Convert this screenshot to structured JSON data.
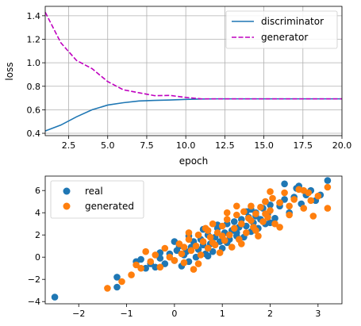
{
  "chart_data": [
    {
      "type": "line",
      "xlabel": "epoch",
      "ylabel": "loss",
      "xlim": [
        1,
        20
      ],
      "ylim": [
        0.38,
        1.48
      ],
      "xticks": [
        2.5,
        5.0,
        7.5,
        10.0,
        12.5,
        15.0,
        17.5,
        20.0
      ],
      "xtick_labels": [
        "2.5",
        "5.0",
        "7.5",
        "10.0",
        "12.5",
        "15.0",
        "17.5",
        "20.0"
      ],
      "yticks": [
        0.4,
        0.6,
        0.8,
        1.0,
        1.2,
        1.4
      ],
      "ytick_labels": [
        "0.4",
        "0.6",
        "0.8",
        "1.0",
        "1.2",
        "1.4"
      ],
      "grid": true,
      "legend_position": "top-right",
      "x": [
        1,
        2,
        3,
        4,
        5,
        6,
        7,
        8,
        9,
        10,
        11,
        12,
        13,
        14,
        15,
        16,
        17,
        18,
        19,
        20
      ],
      "series": [
        {
          "name": "discriminator",
          "color": "#1f77b4",
          "style": "solid",
          "values": [
            0.42,
            0.47,
            0.54,
            0.6,
            0.64,
            0.66,
            0.675,
            0.68,
            0.683,
            0.688,
            0.692,
            0.693,
            0.693,
            0.693,
            0.693,
            0.693,
            0.693,
            0.693,
            0.693,
            0.693
          ]
        },
        {
          "name": "generator",
          "color": "#bf00bf",
          "style": "dashed",
          "values": [
            1.43,
            1.17,
            1.02,
            0.95,
            0.84,
            0.77,
            0.745,
            0.72,
            0.722,
            0.705,
            0.693,
            0.693,
            0.693,
            0.693,
            0.693,
            0.693,
            0.693,
            0.693,
            0.693,
            0.693
          ]
        }
      ]
    },
    {
      "type": "scatter",
      "xlim": [
        -2.7,
        3.5
      ],
      "ylim": [
        -4.2,
        7.3
      ],
      "xticks": [
        -2,
        -1,
        0,
        1,
        2,
        3
      ],
      "xtick_labels": [
        "−2",
        "−1",
        "0",
        "1",
        "2",
        "3"
      ],
      "yticks": [
        -4,
        -2,
        0,
        2,
        4,
        6
      ],
      "ytick_labels": [
        "−4",
        "−2",
        "0",
        "2",
        "4",
        "6"
      ],
      "grid": false,
      "legend_position": "top-left",
      "series": [
        {
          "name": "real",
          "color": "#1f77b4",
          "points": [
            [
              -2.5,
              -3.6
            ],
            [
              -1.2,
              -2.7
            ],
            [
              -1.2,
              -1.8
            ],
            [
              -0.7,
              -0.2
            ],
            [
              -0.6,
              -1.0
            ],
            [
              -0.5,
              -0.6
            ],
            [
              -0.4,
              -0.9
            ],
            [
              -0.3,
              -0.1
            ],
            [
              -0.2,
              -0.6
            ],
            [
              -0.1,
              0.3
            ],
            [
              0.0,
              -0.3
            ],
            [
              0.05,
              0.6
            ],
            [
              0.1,
              1.0
            ],
            [
              0.15,
              -0.8
            ],
            [
              0.2,
              0.2
            ],
            [
              0.25,
              0.5
            ],
            [
              0.3,
              -0.4
            ],
            [
              0.35,
              0.9
            ],
            [
              0.4,
              1.4
            ],
            [
              0.45,
              0.0
            ],
            [
              0.5,
              0.7
            ],
            [
              0.55,
              1.6
            ],
            [
              0.6,
              1.1
            ],
            [
              0.65,
              0.3
            ],
            [
              0.7,
              2.0
            ],
            [
              0.75,
              1.2
            ],
            [
              0.8,
              0.5
            ],
            [
              0.85,
              1.8
            ],
            [
              0.9,
              2.6
            ],
            [
              0.95,
              1.4
            ],
            [
              1.0,
              0.8
            ],
            [
              1.05,
              2.2
            ],
            [
              1.1,
              3.0
            ],
            [
              1.15,
              1.6
            ],
            [
              1.2,
              2.4
            ],
            [
              1.25,
              3.2
            ],
            [
              1.3,
              1.9
            ],
            [
              1.35,
              2.7
            ],
            [
              1.4,
              3.4
            ],
            [
              1.45,
              1.8
            ],
            [
              1.5,
              2.8
            ],
            [
              1.55,
              3.6
            ],
            [
              1.6,
              2.3
            ],
            [
              1.65,
              3.1
            ],
            [
              1.7,
              4.0
            ],
            [
              1.75,
              2.6
            ],
            [
              1.8,
              3.4
            ],
            [
              1.85,
              4.4
            ],
            [
              1.9,
              3.0
            ],
            [
              1.95,
              3.9
            ],
            [
              2.0,
              4.7
            ],
            [
              2.1,
              3.5
            ],
            [
              2.2,
              4.6
            ],
            [
              2.3,
              5.2
            ],
            [
              2.4,
              4.0
            ],
            [
              2.5,
              5.4
            ],
            [
              2.55,
              6.2
            ],
            [
              2.65,
              4.8
            ],
            [
              2.75,
              5.6
            ],
            [
              2.85,
              6.0
            ],
            [
              2.95,
              5.1
            ],
            [
              3.05,
              5.6
            ],
            [
              3.2,
              6.9
            ],
            [
              0.9,
              2.9
            ],
            [
              1.3,
              2.2
            ],
            [
              0.6,
              2.5
            ],
            [
              1.6,
              4.3
            ],
            [
              2.0,
              3.1
            ],
            [
              2.3,
              6.6
            ],
            [
              -0.8,
              -0.4
            ],
            [
              0.3,
              1.9
            ],
            [
              1.1,
              1.3
            ],
            [
              1.7,
              3.7
            ],
            [
              2.6,
              6.4
            ],
            [
              0.0,
              1.4
            ],
            [
              1.5,
              4.1
            ],
            [
              2.2,
              4.9
            ],
            [
              0.7,
              0.1
            ],
            [
              1.9,
              5.0
            ],
            [
              -0.3,
              0.4
            ]
          ]
        },
        {
          "name": "generated",
          "color": "#ff7f0e",
          "points": [
            [
              -1.4,
              -2.8
            ],
            [
              -1.1,
              -2.2
            ],
            [
              -0.9,
              -1.6
            ],
            [
              -0.8,
              -0.7
            ],
            [
              -0.6,
              0.5
            ],
            [
              -0.5,
              -0.4
            ],
            [
              -0.4,
              0.2
            ],
            [
              -0.3,
              -0.9
            ],
            [
              -0.2,
              0.8
            ],
            [
              -0.1,
              0.0
            ],
            [
              0.0,
              -0.3
            ],
            [
              0.1,
              1.2
            ],
            [
              0.15,
              0.3
            ],
            [
              0.2,
              -0.5
            ],
            [
              0.3,
              1.6
            ],
            [
              0.35,
              0.6
            ],
            [
              0.4,
              -1.1
            ],
            [
              0.45,
              1.0
            ],
            [
              0.5,
              2.0
            ],
            [
              0.55,
              0.2
            ],
            [
              0.6,
              1.4
            ],
            [
              0.65,
              2.6
            ],
            [
              0.7,
              0.8
            ],
            [
              0.75,
              1.8
            ],
            [
              0.8,
              3.0
            ],
            [
              0.85,
              1.1
            ],
            [
              0.9,
              2.2
            ],
            [
              0.95,
              0.4
            ],
            [
              1.0,
              2.8
            ],
            [
              1.05,
              1.5
            ],
            [
              1.1,
              3.4
            ],
            [
              1.15,
              2.0
            ],
            [
              1.2,
              0.9
            ],
            [
              1.25,
              2.6
            ],
            [
              1.3,
              3.8
            ],
            [
              1.35,
              1.6
            ],
            [
              1.4,
              3.0
            ],
            [
              1.45,
              4.1
            ],
            [
              1.5,
              2.2
            ],
            [
              1.55,
              3.5
            ],
            [
              1.6,
              4.6
            ],
            [
              1.65,
              2.7
            ],
            [
              1.7,
              3.9
            ],
            [
              1.75,
              1.9
            ],
            [
              1.8,
              4.5
            ],
            [
              1.85,
              3.2
            ],
            [
              1.9,
              5.0
            ],
            [
              1.95,
              3.6
            ],
            [
              2.0,
              4.2
            ],
            [
              2.05,
              5.3
            ],
            [
              2.1,
              3.0
            ],
            [
              2.2,
              4.9
            ],
            [
              2.3,
              5.8
            ],
            [
              2.4,
              3.8
            ],
            [
              2.5,
              5.2
            ],
            [
              2.6,
              6.1
            ],
            [
              2.7,
              4.4
            ],
            [
              2.8,
              5.8
            ],
            [
              2.9,
              3.7
            ],
            [
              3.0,
              5.5
            ],
            [
              3.2,
              6.3
            ],
            [
              3.2,
              4.4
            ],
            [
              0.3,
              2.2
            ],
            [
              1.0,
              1.9
            ],
            [
              1.6,
              3.3
            ],
            [
              2.2,
              2.7
            ],
            [
              0.5,
              -0.6
            ],
            [
              1.3,
              4.6
            ],
            [
              2.7,
              6.0
            ],
            [
              -0.7,
              -1.0
            ],
            [
              0.8,
              1.3
            ],
            [
              1.7,
              2.4
            ],
            [
              2.4,
              4.6
            ],
            [
              1.1,
              4.0
            ],
            [
              0.2,
              0.9
            ],
            [
              1.9,
              3.9
            ],
            [
              2.85,
              5.1
            ],
            [
              1.4,
              1.2
            ],
            [
              0.7,
              2.4
            ],
            [
              2.0,
              5.9
            ]
          ]
        }
      ]
    }
  ]
}
